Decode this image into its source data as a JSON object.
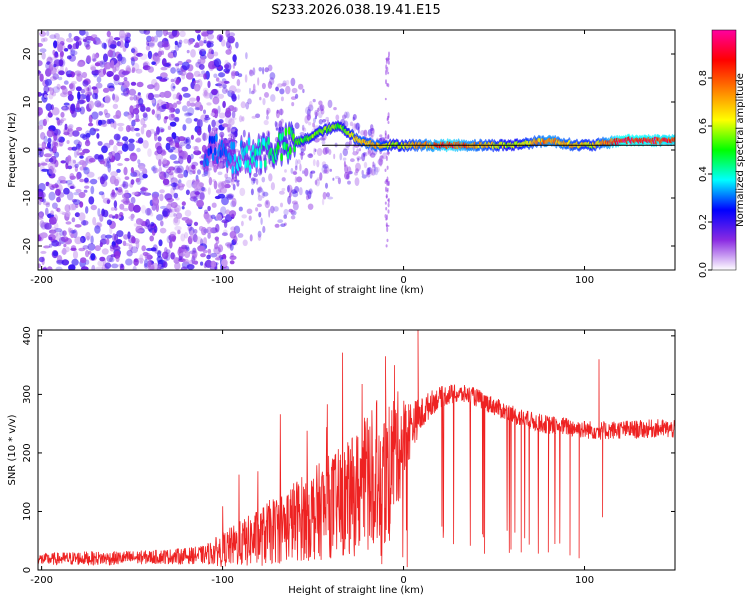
{
  "title": "S233.2026.038.19.41.E15",
  "chart_data": [
    {
      "type": "heatmap",
      "xlabel": "Height of straight line (km)",
      "ylabel": "Frequency (Hz)",
      "xlim": [
        -202,
        150
      ],
      "ylim": [
        -25,
        25
      ],
      "xticks": [
        -200,
        -100,
        0,
        100
      ],
      "yticks": [
        -20,
        -10,
        0,
        10,
        20
      ],
      "colorbar": {
        "label": "Normalized spectral amplitude",
        "range": [
          0.0,
          1.0
        ],
        "ticks": [
          "0.0",
          "0.2",
          "0.4",
          "0.6",
          "0.8"
        ],
        "tick_values": [
          0.0,
          0.2,
          0.4,
          0.6,
          0.8
        ],
        "stops": [
          "#ffffff",
          "#8a2be2",
          "#0000ff",
          "#00ffff",
          "#00ff00",
          "#ffff00",
          "#ff8000",
          "#ff0000",
          "#ff00a0"
        ]
      },
      "ridge": {
        "x": [
          -105,
          -95,
          -85,
          -75,
          -65,
          -55,
          -45,
          -35,
          -25,
          -15,
          -5,
          5,
          15,
          25,
          40,
          60,
          80,
          95,
          105,
          120,
          150
        ],
        "freq": [
          0,
          -2,
          -1,
          0,
          1,
          2,
          4,
          5,
          2,
          1,
          1,
          1,
          1,
          1,
          1,
          1,
          2,
          1,
          1,
          2,
          2
        ],
        "amplitude": [
          0.3,
          0.35,
          0.4,
          0.45,
          0.5,
          0.55,
          0.6,
          0.55,
          0.7,
          0.75,
          0.6,
          0.7,
          0.8,
          0.9,
          0.75,
          0.6,
          0.8,
          0.7,
          0.65,
          0.95,
          0.9
        ]
      }
    },
    {
      "type": "line",
      "xlabel": "Height of straight line (km)",
      "ylabel": "SNR (10 * v/v)",
      "xlim": [
        -202,
        150
      ],
      "ylim": [
        0,
        410
      ],
      "xticks": [
        -200,
        -100,
        0,
        100
      ],
      "yticks": [
        0,
        100,
        200,
        300,
        400
      ],
      "series": [
        {
          "name": "SNR",
          "color": "#ee2222",
          "x": [
            -202,
            -180,
            -160,
            -140,
            -120,
            -110,
            -100,
            -90,
            -80,
            -70,
            -60,
            -50,
            -40,
            -30,
            -20,
            -15,
            -10,
            -5,
            0,
            5,
            10,
            15,
            20,
            25,
            30,
            35,
            40,
            50,
            60,
            70,
            80,
            90,
            100,
            110,
            120,
            130,
            140,
            150
          ],
          "mean": [
            18,
            20,
            20,
            22,
            24,
            26,
            35,
            45,
            55,
            70,
            85,
            95,
            110,
            120,
            150,
            180,
            160,
            200,
            220,
            250,
            265,
            285,
            295,
            300,
            300,
            300,
            295,
            280,
            265,
            255,
            248,
            245,
            240,
            238,
            240,
            240,
            242,
            240
          ],
          "noise": [
            10,
            12,
            12,
            12,
            14,
            16,
            30,
            40,
            50,
            60,
            70,
            80,
            90,
            100,
            120,
            130,
            120,
            110,
            80,
            40,
            30,
            22,
            18,
            18,
            16,
            16,
            16,
            16,
            16,
            16,
            16,
            16,
            16,
            16,
            16,
            16,
            16,
            16
          ],
          "spikes": [
            {
              "x": -10,
              "y": 365
            },
            {
              "x": -5,
              "y": 350
            },
            {
              "x": 8,
              "y": 410
            },
            {
              "x": -12,
              "y": 10
            },
            {
              "x": 2,
              "y": 5
            },
            {
              "x": 65,
              "y": 30
            },
            {
              "x": 80,
              "y": 30
            },
            {
              "x": 92,
              "y": 25
            },
            {
              "x": 97,
              "y": 20
            },
            {
              "x": 108,
              "y": 360
            },
            {
              "x": 110,
              "y": 90
            }
          ]
        }
      ]
    }
  ]
}
